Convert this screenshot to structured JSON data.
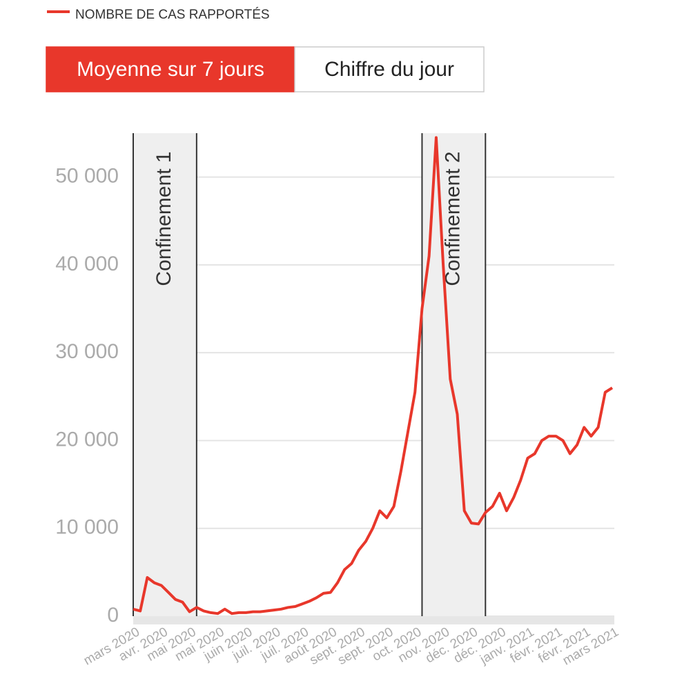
{
  "chart_data": {
    "type": "line",
    "buttons": [
      {
        "label": "Moyenne sur 7 jours",
        "active": true
      },
      {
        "label": "Chiffre du jour",
        "active": false
      }
    ],
    "categories": [
      "mars 2020",
      null,
      null,
      null,
      "avr. 2020",
      null,
      null,
      null,
      "mai 2020",
      null,
      null,
      null,
      "mai 2020",
      null,
      null,
      null,
      "juin 2020",
      null,
      null,
      null,
      "juil. 2020",
      null,
      null,
      null,
      "juil. 2020",
      null,
      null,
      null,
      "août 2020",
      null,
      null,
      null,
      "sept. 2020",
      null,
      null,
      null,
      "sept. 2020",
      null,
      null,
      null,
      "oct. 2020",
      null,
      null,
      null,
      "nov. 2020",
      null,
      null,
      null,
      "déc. 2020",
      null,
      null,
      null,
      "déc. 2020",
      null,
      null,
      null,
      "janv. 2021",
      null,
      null,
      null,
      "févr. 2021",
      null,
      null,
      null,
      "févr. 2021",
      null,
      null,
      null,
      "mars 2021"
    ],
    "series": [
      {
        "name": "NOMBRE DE CAS RAPPORTÉS",
        "color": "#e8372b",
        "values": [
          800,
          600,
          4400,
          3800,
          3500,
          2700,
          1900,
          1600,
          500,
          1000,
          600,
          400,
          300,
          800,
          300,
          400,
          400,
          500,
          500,
          600,
          700,
          800,
          1000,
          1100,
          1400,
          1700,
          2100,
          2600,
          2700,
          3800,
          5300,
          6000,
          7500,
          8500,
          10000,
          12000,
          11200,
          12500,
          16500,
          21000,
          25500,
          35000,
          41000,
          54500,
          40000,
          27000,
          23000,
          12000,
          10600,
          10500,
          11800,
          12500,
          14000,
          12000,
          13500,
          15500,
          18000,
          18500,
          20000,
          20500,
          20500,
          20000,
          18500,
          19500,
          21500,
          20500,
          21500,
          25500,
          26000
        ]
      }
    ],
    "shaded_regions": [
      {
        "label": "Confinement 1",
        "start": 0,
        "end": 9
      },
      {
        "label": "Confinement 2",
        "start": 41,
        "end": 50
      }
    ],
    "ylim": [
      0,
      55000
    ],
    "yticks": [
      0,
      {
        "value": 10000,
        "label": "10 000"
      },
      {
        "value": 20000,
        "label": "20 000"
      },
      {
        "value": 30000,
        "label": "30 000"
      },
      {
        "value": 40000,
        "label": "40 000"
      },
      {
        "value": 50000,
        "label": "50 000"
      }
    ],
    "grid": true
  }
}
